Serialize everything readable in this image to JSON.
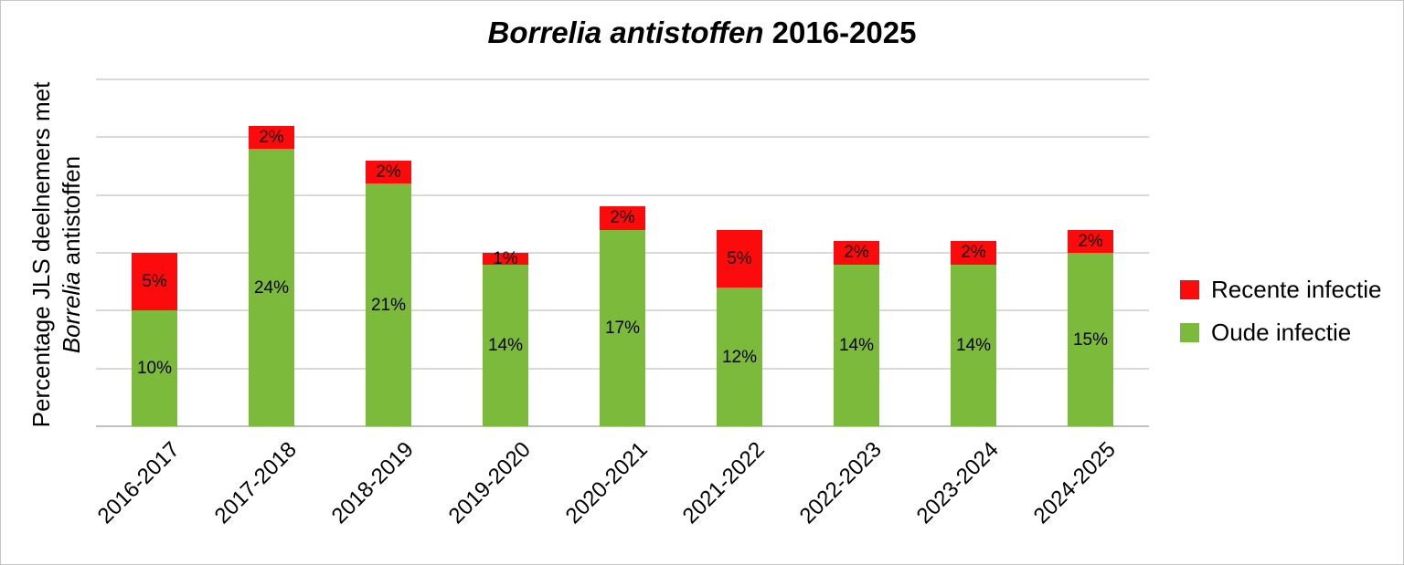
{
  "title": {
    "italic_part": "Borrelia antistoffen",
    "regular_part": " 2016-2025"
  },
  "y_axis": {
    "label_line1": "Percentage JLS deelnemers met",
    "label_line2_italic": "Borrelia",
    "label_line2_regular": " antistoffen",
    "min": 0,
    "max": 30,
    "gridline_step": 5
  },
  "legend": {
    "items": [
      {
        "label": "Recente infectie",
        "color": "#fb0b0b"
      },
      {
        "label": "Oude infectie",
        "color": "#7cba3b"
      }
    ]
  },
  "colors": {
    "gridline": "#d9d9d9",
    "axis_line": "#c0c0c0",
    "frame_border": "#c6c6c6",
    "background": "#ffffff",
    "text": "#000000"
  },
  "chart_data": {
    "type": "bar",
    "stacked": true,
    "title": "Borrelia antistoffen 2016-2025",
    "ylabel": "Percentage JLS deelnemers met Borrelia antistoffen",
    "xlabel": "",
    "categories": [
      "2016-2017",
      "2017-2018",
      "2018-2019",
      "2019-2020",
      "2020-2021",
      "2021-2022",
      "2022-2023",
      "2023-2024",
      "2024-2025"
    ],
    "series": [
      {
        "name": "Oude infectie",
        "color": "#7cba3b",
        "values": [
          10,
          24,
          21,
          14,
          17,
          12,
          14,
          14,
          15
        ]
      },
      {
        "name": "Recente infectie",
        "color": "#fb0b0b",
        "values": [
          5,
          2,
          2,
          1,
          2,
          5,
          2,
          2,
          2
        ]
      }
    ],
    "totals": [
      15,
      26,
      23,
      15,
      19,
      17,
      16,
      16,
      17
    ],
    "data_label_format": "{value}%",
    "ylim": [
      0,
      30
    ],
    "gridline_step": 5,
    "grid": true,
    "y_tick_labels_visible": false,
    "legend_position": "right",
    "x_label_rotation_deg": -45
  }
}
